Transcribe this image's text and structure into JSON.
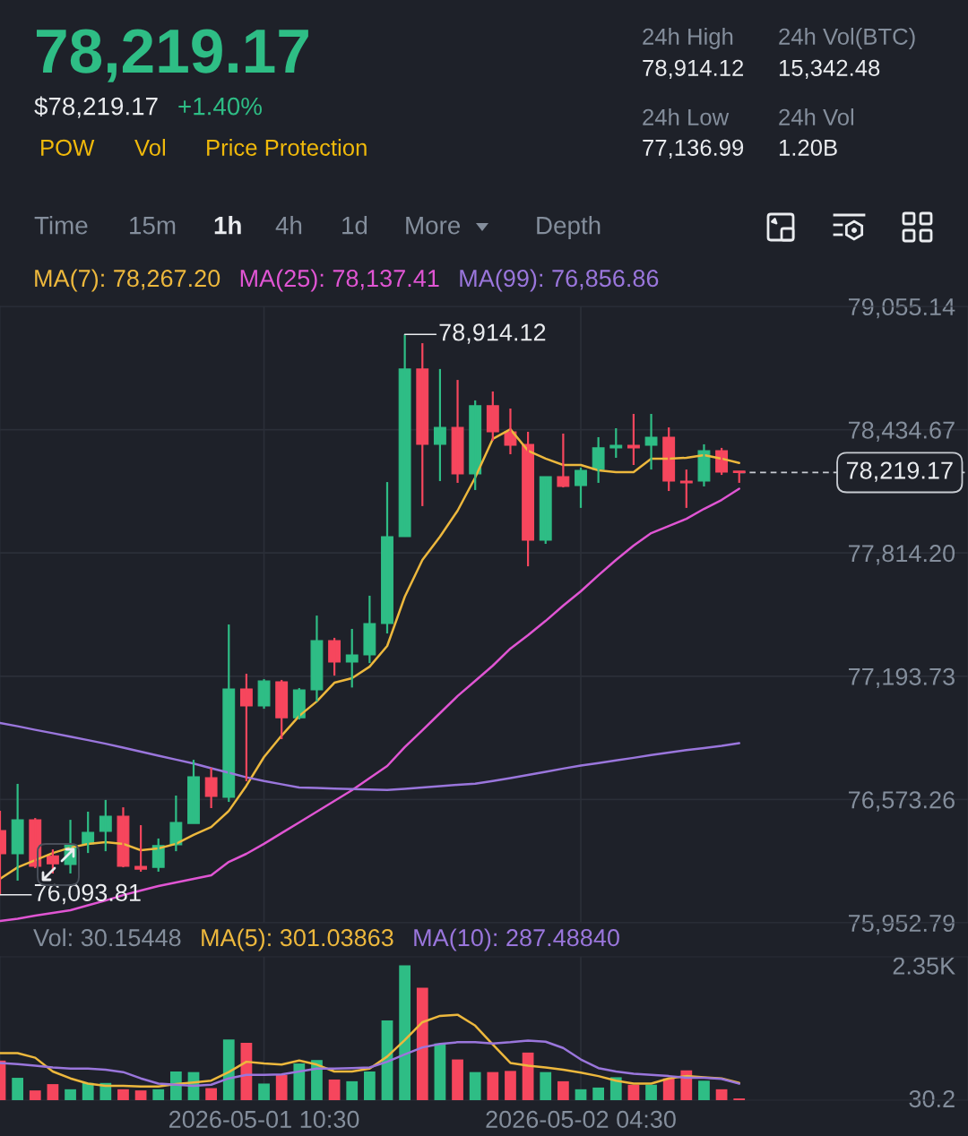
{
  "chart_data": [
    {
      "type": "other",
      "title": "78,219.17",
      "annotations": [
        "$78,219.17",
        "+1.40%",
        "POW",
        "Vol",
        "Price Protection",
        "24h High",
        "78,914.12",
        "24h Vol(BTC)",
        "15,342.48",
        "24h Low",
        "77,136.99",
        "24h Vol",
        "1.20B",
        "Time",
        "15m",
        "1h",
        "4h",
        "1d",
        "More",
        "Depth"
      ]
    },
    {
      "type": "candlestick",
      "x": [
        "2026-04-30T19:30",
        "2026-04-30T20:30",
        "2026-04-30T21:30",
        "2026-04-30T22:30",
        "2026-04-30T23:30",
        "2026-05-01T00:30",
        "2026-05-01T01:30",
        "2026-05-01T02:30",
        "2026-05-01T03:30",
        "2026-05-01T04:30",
        "2026-05-01T05:30",
        "2026-05-01T06:30",
        "2026-05-01T07:30",
        "2026-05-01T08:30",
        "2026-05-01T09:30",
        "2026-05-01T10:30",
        "2026-05-01T11:30",
        "2026-05-01T12:30",
        "2026-05-01T13:30",
        "2026-05-01T14:30",
        "2026-05-01T15:30",
        "2026-05-01T16:30",
        "2026-05-01T17:30",
        "2026-05-01T18:30",
        "2026-05-01T19:30",
        "2026-05-01T20:30",
        "2026-05-01T21:30",
        "2026-05-01T22:30",
        "2026-05-01T23:30",
        "2026-05-02T00:30",
        "2026-05-02T01:30",
        "2026-05-02T02:30",
        "2026-05-02T03:30",
        "2026-05-02T04:30",
        "2026-05-02T05:30",
        "2026-05-02T06:30",
        "2026-05-02T07:30",
        "2026-05-02T08:30",
        "2026-05-02T09:30",
        "2026-05-02T10:30",
        "2026-05-02T11:30",
        "2026-05-02T12:30",
        "2026-05-02T13:30"
      ],
      "ohlc": [
        [
          76417,
          76516,
          76093.81,
          76300
        ],
        [
          76300,
          76652,
          76165,
          76471
        ],
        [
          76471,
          76480,
          76228,
          76237
        ],
        [
          76290,
          76322,
          76201,
          76250
        ],
        [
          76246,
          76471,
          76201,
          76345
        ],
        [
          76350,
          76512,
          76304,
          76408
        ],
        [
          76413,
          76571,
          76313,
          76489
        ],
        [
          76489,
          76534,
          76232,
          76237
        ],
        [
          76237,
          76444,
          76210,
          76223
        ],
        [
          76232,
          76377,
          76210,
          76341
        ],
        [
          76345,
          76593,
          76313,
          76458
        ],
        [
          76453,
          76773,
          76453,
          76688
        ],
        [
          76683,
          76733,
          76530,
          76589
        ],
        [
          76584,
          77454,
          76561,
          77130
        ],
        [
          77130,
          77206,
          76665,
          77044
        ],
        [
          77044,
          77179,
          77030,
          77170
        ],
        [
          77166,
          77175,
          76877,
          76985
        ],
        [
          76985,
          77134,
          76976,
          77125
        ],
        [
          77125,
          77499,
          77066,
          77373
        ],
        [
          77373,
          77387,
          77197,
          77265
        ],
        [
          77265,
          77432,
          77137,
          77301
        ],
        [
          77301,
          77599,
          77260,
          77459
        ],
        [
          77459,
          78171,
          77409,
          77896
        ],
        [
          77896,
          78914.12,
          77896,
          78740
        ],
        [
          78740,
          78870,
          78050,
          78361
        ],
        [
          78361,
          78740,
          78176,
          78446
        ],
        [
          78446,
          78685,
          78167,
          78212
        ],
        [
          78212,
          78582,
          78131,
          78555
        ],
        [
          78555,
          78627,
          78379,
          78424
        ],
        [
          78424,
          78541,
          78311,
          78356
        ],
        [
          78361,
          78424,
          77747,
          77878
        ],
        [
          77878,
          78198,
          77860,
          78198
        ],
        [
          78198,
          78415,
          78144,
          78149
        ],
        [
          78153,
          78244,
          78041,
          78230
        ],
        [
          78235,
          78397,
          78167,
          78343
        ],
        [
          78343,
          78442,
          78293,
          78356
        ],
        [
          78356,
          78514,
          78257,
          78343
        ],
        [
          78356,
          78514,
          78234,
          78397
        ],
        [
          78397,
          78446,
          78126,
          78176
        ],
        [
          78176,
          78234,
          78041,
          78167
        ],
        [
          78176,
          78361,
          78149,
          78329
        ],
        [
          78329,
          78343,
          78207,
          78221
        ],
        [
          78226,
          78226,
          78167,
          78219.17
        ]
      ],
      "colors": [
        "#f6465d",
        "#2ebd85",
        "#f6465d",
        "#f6465d",
        "#2ebd85",
        "#2ebd85",
        "#2ebd85",
        "#f6465d",
        "#f6465d",
        "#2ebd85",
        "#2ebd85",
        "#2ebd85",
        "#f6465d",
        "#2ebd85",
        "#f6465d",
        "#2ebd85",
        "#f6465d",
        "#2ebd85",
        "#2ebd85",
        "#f6465d",
        "#2ebd85",
        "#2ebd85",
        "#2ebd85",
        "#2ebd85",
        "#f6465d",
        "#2ebd85",
        "#f6465d",
        "#2ebd85",
        "#f6465d",
        "#f6465d",
        "#f6465d",
        "#2ebd85",
        "#f6465d",
        "#2ebd85",
        "#2ebd85",
        "#2ebd85",
        "#f6465d",
        "#2ebd85",
        "#f6465d",
        "#f6465d",
        "#2ebd85",
        "#f6465d",
        "#f6465d"
      ],
      "series": [
        {
          "name": "MA(7): 78,267.20",
          "type": "line",
          "color": "#edb83d",
          "values": [
            76174,
            76232,
            76268,
            76304,
            76331,
            76350,
            76359,
            76350,
            76318,
            76327,
            76350,
            76395,
            76435,
            76516,
            76643,
            76787,
            76895,
            76994,
            77067,
            77161,
            77184,
            77242,
            77346,
            77594,
            77779,
            77896,
            78027,
            78194,
            78388,
            78437,
            78329,
            78289,
            78257,
            78257,
            78230,
            78221,
            78221,
            78289,
            78289,
            78293,
            78307,
            78289,
            78267.2
          ]
        },
        {
          "name": "MA(25): 78,137.41",
          "type": "line",
          "color": "#e055d3",
          "values": [
            75962,
            75973,
            75989,
            76002,
            76016,
            76041,
            76065,
            76092,
            76115,
            76138,
            76156,
            76174,
            76192,
            76259,
            76300,
            76350,
            76404,
            76458,
            76512,
            76566,
            76620,
            76681,
            76742,
            76837,
            76922,
            77008,
            77094,
            77170,
            77247,
            77333,
            77400,
            77472,
            77549,
            77621,
            77702,
            77779,
            77851,
            77914,
            77950,
            77986,
            78036,
            78081,
            78137.41
          ]
        },
        {
          "name": "MA(99): 76,856.86",
          "type": "line",
          "color": "#9a76dc",
          "values": [
            76958,
            76942,
            76924,
            76907,
            76890,
            76872,
            76854,
            76834,
            76814,
            76794,
            76774,
            76754,
            76731,
            76708,
            76685,
            76666,
            76650,
            76634,
            76631,
            76628,
            76626,
            76623,
            76621,
            76627,
            76634,
            76640,
            76647,
            76653,
            76666,
            76681,
            76697,
            76713,
            76729,
            76744,
            76757,
            76770,
            76783,
            76797,
            76810,
            76822,
            76832,
            76843,
            76856.86
          ]
        }
      ],
      "xlim": [
        "2026-04-30T19:30",
        "2026-05-03T02:30"
      ],
      "xticks": [
        {
          "value": "2026-05-01T10:30",
          "label": null
        },
        {
          "value": "2026-05-02T04:30",
          "label": null
        }
      ],
      "ylim": [
        75952.79,
        79055.14
      ],
      "yticks": [
        {
          "value": 79055.14,
          "label": "79,055.14"
        },
        {
          "value": 78434.67,
          "label": "78,434.67"
        },
        {
          "value": 77814.2,
          "label": "77,814.20"
        },
        {
          "value": 77193.73,
          "label": "77,193.73"
        },
        {
          "value": 76573.26,
          "label": "76,573.26"
        },
        {
          "value": 75952.79,
          "label": "75,952.79"
        }
      ],
      "tick_labels": "y",
      "grid": true,
      "legend": "top left",
      "ref_lines": [
        {
          "axis": "y",
          "value": 78219.17,
          "label": "78,219.17",
          "line_style": "dashed",
          "color": "#c8ccd2"
        }
      ],
      "annotations": [
        {
          "text": "78,914.12",
          "x": "2026-05-01T18:30",
          "y": 78914.12
        },
        {
          "text": "76,093.81",
          "x": "2026-04-30T19:30",
          "y": 76093.81
        }
      ]
    },
    {
      "type": "bar",
      "title": "Vol: 30.15448",
      "x": [
        "2026-04-30T19:30",
        "2026-04-30T20:30",
        "2026-04-30T21:30",
        "2026-04-30T22:30",
        "2026-04-30T23:30",
        "2026-05-01T00:30",
        "2026-05-01T01:30",
        "2026-05-01T02:30",
        "2026-05-01T03:30",
        "2026-05-01T04:30",
        "2026-05-01T05:30",
        "2026-05-01T06:30",
        "2026-05-01T07:30",
        "2026-05-01T08:30",
        "2026-05-01T09:30",
        "2026-05-01T10:30",
        "2026-05-01T11:30",
        "2026-05-01T12:30",
        "2026-05-01T13:30",
        "2026-05-01T14:30",
        "2026-05-01T15:30",
        "2026-05-01T16:30",
        "2026-05-01T17:30",
        "2026-05-01T18:30",
        "2026-05-01T19:30",
        "2026-05-01T20:30",
        "2026-05-01T21:30",
        "2026-05-01T22:30",
        "2026-05-01T23:30",
        "2026-05-02T00:30",
        "2026-05-02T01:30",
        "2026-05-02T02:30",
        "2026-05-02T03:30",
        "2026-05-02T04:30",
        "2026-05-02T05:30",
        "2026-05-02T06:30",
        "2026-05-02T07:30",
        "2026-05-02T08:30",
        "2026-05-02T09:30",
        "2026-05-02T10:30",
        "2026-05-02T11:30",
        "2026-05-02T12:30",
        "2026-05-02T13:30"
      ],
      "series": [
        {
          "type": "bar",
          "colors": [
            "#f6465d",
            "#2ebd85",
            "#f6465d",
            "#f6465d",
            "#2ebd85",
            "#2ebd85",
            "#2ebd85",
            "#f6465d",
            "#f6465d",
            "#2ebd85",
            "#2ebd85",
            "#2ebd85",
            "#f6465d",
            "#2ebd85",
            "#f6465d",
            "#2ebd85",
            "#f6465d",
            "#2ebd85",
            "#2ebd85",
            "#f6465d",
            "#2ebd85",
            "#2ebd85",
            "#2ebd85",
            "#2ebd85",
            "#f6465d",
            "#2ebd85",
            "#f6465d",
            "#2ebd85",
            "#f6465d",
            "#f6465d",
            "#f6465d",
            "#2ebd85",
            "#f6465d",
            "#2ebd85",
            "#2ebd85",
            "#2ebd85",
            "#f6465d",
            "#2ebd85",
            "#f6465d",
            "#f6465d",
            "#2ebd85",
            "#f6465d",
            "#f6465d"
          ],
          "values": [
            690,
            390,
            170,
            280,
            190,
            300,
            300,
            190,
            170,
            190,
            500,
            490,
            210,
            1060,
            1000,
            290,
            440,
            640,
            700,
            360,
            330,
            500,
            1390,
            2350,
            1960,
            990,
            710,
            490,
            490,
            510,
            830,
            490,
            330,
            190,
            220,
            400,
            270,
            270,
            380,
            520,
            340,
            190,
            30.15448
          ]
        },
        {
          "name": "MA(5): 301.03863",
          "type": "line",
          "color": "#edb83d",
          "values": [
            820,
            820,
            740,
            500,
            380,
            290,
            250,
            250,
            240,
            240,
            280,
            310,
            340,
            490,
            670,
            640,
            620,
            690,
            620,
            500,
            500,
            550,
            760,
            1050,
            1360,
            1470,
            1490,
            1300,
            970,
            650,
            600,
            570,
            530,
            480,
            420,
            340,
            290,
            290,
            380,
            420,
            400,
            380,
            301.03863
          ]
        },
        {
          "name": "MA(10): 287.48840",
          "type": "line",
          "color": "#9a76dc",
          "values": [
            650,
            630,
            600,
            570,
            550,
            550,
            530,
            490,
            380,
            290,
            270,
            250,
            270,
            380,
            440,
            440,
            450,
            500,
            550,
            550,
            560,
            570,
            670,
            800,
            920,
            980,
            1010,
            1010,
            990,
            1010,
            1040,
            1020,
            910,
            710,
            560,
            500,
            460,
            440,
            420,
            390,
            390,
            370,
            287.4884
          ]
        }
      ],
      "xlim": [
        "2026-04-30T19:30",
        "2026-05-03T02:30"
      ],
      "xticks": [
        {
          "value": "2026-05-01T10:30",
          "label": "2026-05-01 10:30"
        },
        {
          "value": "2026-05-02T04:30",
          "label": "2026-05-02 04:30"
        }
      ],
      "ylim": [
        0,
        2500
      ],
      "yticks": [
        {
          "value": 2350,
          "label": "2.35K"
        },
        30.2
      ],
      "grid": "x",
      "legend": "top left"
    }
  ]
}
